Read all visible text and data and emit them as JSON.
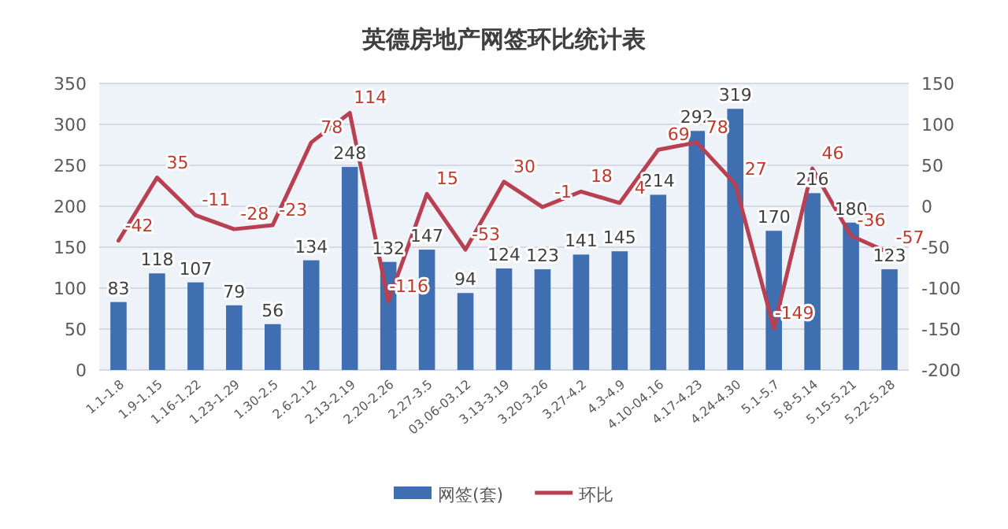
{
  "chart_data": {
    "type": "bar",
    "title": "英德房地产网签环比统计表",
    "categories": [
      "1.1-1.8",
      "1.9-1.15",
      "1.16-1.22",
      "1.23-1.29",
      "1.30-2.5",
      "2.6-2.12",
      "2.13-2.19",
      "2.20-2.26",
      "2.27-3.5",
      "03.06-03.12",
      "3.13-3.19",
      "3.20-3.26",
      "3.27-4.2",
      "4.3-4.9",
      "4.10-04.16",
      "4.17-4.23",
      "4.24-4.30",
      "5.1-5.7",
      "5.8-5.14",
      "5.15-5.21",
      "5.22-5.28"
    ],
    "series": [
      {
        "name": "网签(套)",
        "color": "#3f6fb0",
        "values": [
          83,
          118,
          107,
          79,
          56,
          134,
          248,
          132,
          147,
          94,
          124,
          123,
          141,
          145,
          214,
          292,
          319,
          170,
          216,
          180,
          123
        ]
      },
      {
        "name": "环比",
        "type": "line",
        "axis": "y2",
        "color": "#b84050",
        "values": [
          -42,
          35,
          -11,
          -28,
          -23,
          78,
          114,
          -116,
          15,
          -53,
          30,
          -1,
          18,
          4,
          69,
          78,
          27,
          -149,
          46,
          -36,
          -57
        ]
      }
    ],
    "ylim": [
      0,
      350
    ],
    "yticks": [
      0,
      50,
      100,
      150,
      200,
      250,
      300,
      350
    ],
    "y2lim": [
      -200,
      150
    ],
    "y2ticks": [
      -200,
      -150,
      -100,
      -50,
      0,
      50,
      100,
      150
    ],
    "grid": "y",
    "legend": "bottom",
    "data_labels": true,
    "marker": "none"
  }
}
